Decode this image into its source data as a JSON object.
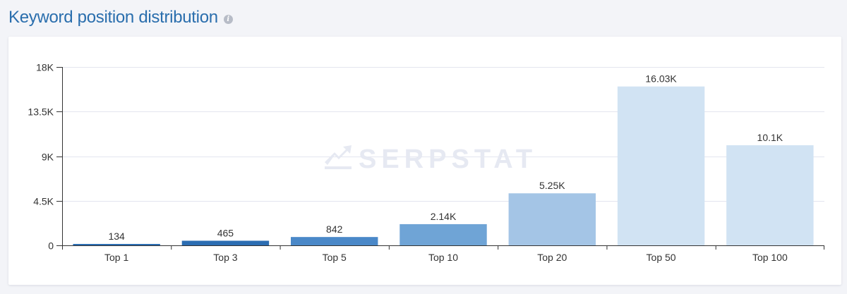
{
  "header": {
    "title": "Keyword position distribution",
    "info_icon": "info-icon"
  },
  "watermark": {
    "text": "SERPSTAT",
    "icon": "serpstat-logo-icon"
  },
  "colors": {
    "bars": [
      "#2c6db2",
      "#2c6db2",
      "#4a88c8",
      "#6fa4d6",
      "#a4c5e6",
      "#d1e3f3",
      "#d1e3f3"
    ],
    "gridline": "#e3e5ef",
    "axis": "#333333",
    "title": "#2a6ead"
  },
  "chart_data": {
    "type": "bar",
    "categories": [
      "Top 1",
      "Top 3",
      "Top 5",
      "Top 10",
      "Top 20",
      "Top 50",
      "Top 100"
    ],
    "values": [
      134,
      465,
      842,
      2140,
      5250,
      16030,
      10100
    ],
    "data_labels": [
      "134",
      "465",
      "842",
      "2.14K",
      "5.25K",
      "16.03K",
      "10.1K"
    ],
    "ylim": [
      0,
      18000
    ],
    "yticks": [
      0,
      4500,
      9000,
      13500,
      18000
    ],
    "ytick_labels": [
      "0",
      "4.5K",
      "9K",
      "13.5K",
      "18K"
    ],
    "grid": true,
    "legend": "none"
  }
}
